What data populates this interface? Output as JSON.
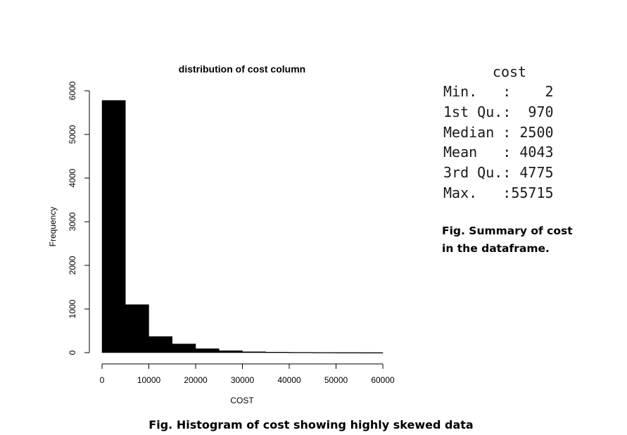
{
  "chart_data": {
    "type": "bar",
    "title": "distribution of cost column",
    "xlabel": "COST",
    "ylabel": "Frequency",
    "bin_edges": [
      0,
      5000,
      10000,
      15000,
      20000,
      25000,
      30000,
      35000,
      40000,
      45000,
      50000,
      55000,
      60000
    ],
    "values": [
      5780,
      1100,
      370,
      200,
      90,
      45,
      20,
      12,
      8,
      5,
      3,
      2
    ],
    "xlim": [
      0,
      60000
    ],
    "ylim": [
      0,
      6000
    ],
    "x_ticks": [
      "0",
      "10000",
      "20000",
      "30000",
      "40000",
      "50000",
      "60000"
    ],
    "y_ticks": [
      "0",
      "1000",
      "2000",
      "3000",
      "4000",
      "5000",
      "6000"
    ],
    "bar_color": "#000000",
    "grid": false
  },
  "summary": {
    "title": "cost",
    "rows": [
      {
        "label": "Min.   :",
        "value": "    2"
      },
      {
        "label": "1st Qu.:",
        "value": "  970"
      },
      {
        "label": "Median :",
        "value": " 2500"
      },
      {
        "label": "Mean   :",
        "value": " 4043"
      },
      {
        "label": "3rd Qu.:",
        "value": " 4775"
      },
      {
        "label": "Max.   :",
        "value": "55715"
      }
    ],
    "caption_line1": "Fig. Summary of cost",
    "caption_line2": "in the dataframe."
  },
  "histogram_caption": "Fig. Histogram of cost showing highly skewed data"
}
